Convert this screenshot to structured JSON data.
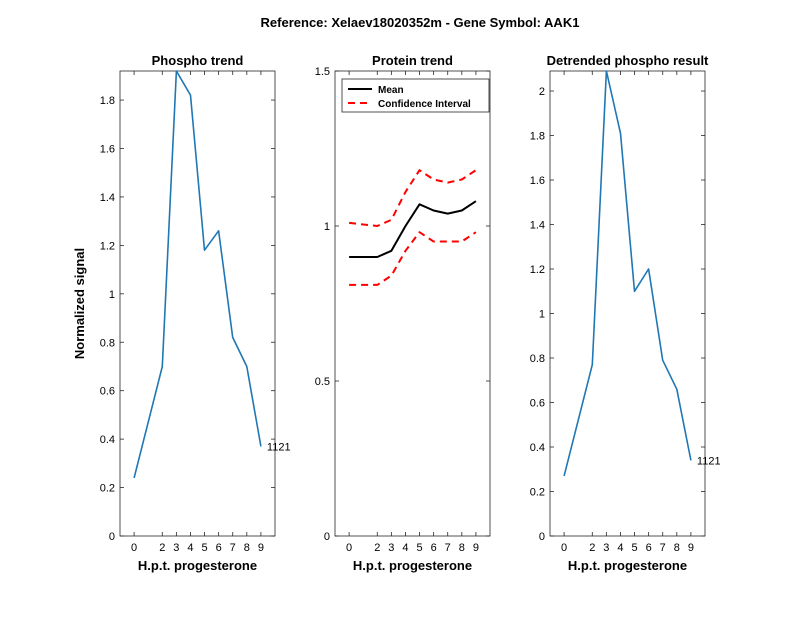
{
  "figure": {
    "title": "Reference:  Xelaev18020352m - Gene Symbol:  AAK1"
  },
  "chart_data": [
    {
      "type": "line",
      "title": "Phospho trend",
      "xlabel": "H.p.t. progesterone",
      "ylabel": "Normalized signal",
      "x": [
        0,
        2,
        3,
        4,
        5,
        6,
        7,
        8,
        9
      ],
      "xticks": [
        "0",
        "2",
        "3",
        "4",
        "5",
        "6",
        "7",
        "8",
        "9"
      ],
      "ylim": [
        0,
        1.92
      ],
      "yticks": [
        "0",
        "0.2",
        "0.4",
        "0.6",
        "0.8",
        "1",
        "1.2",
        "1.4",
        "1.6",
        "1.8"
      ],
      "yticks_values": [
        0,
        0.2,
        0.4,
        0.6,
        0.8,
        1,
        1.2,
        1.4,
        1.6,
        1.8
      ],
      "series": [
        {
          "values": [
            0.24,
            0.7,
            1.92,
            1.82,
            1.18,
            1.26,
            0.82,
            0.7,
            0.37
          ],
          "color": "#1f77b4"
        }
      ],
      "end_label": "1121",
      "grid": false
    },
    {
      "type": "line",
      "title": "Protein trend",
      "xlabel": "H.p.t. progesterone",
      "ylabel": "",
      "x": [
        0,
        2,
        3,
        4,
        5,
        6,
        7,
        8,
        9
      ],
      "xticks": [
        "0",
        "2",
        "3",
        "4",
        "5",
        "6",
        "7",
        "8",
        "9"
      ],
      "ylim": [
        0,
        1.5
      ],
      "yticks": [
        "0",
        "0.5",
        "1",
        "1.5"
      ],
      "yticks_values": [
        0,
        0.5,
        1,
        1.5
      ],
      "series": [
        {
          "name": "Mean",
          "values": [
            0.9,
            0.9,
            0.92,
            1.0,
            1.07,
            1.05,
            1.04,
            1.05,
            1.08
          ],
          "color": "#000000",
          "style": "solid"
        },
        {
          "name": "Confidence Interval",
          "values": [
            1.01,
            1.0,
            1.02,
            1.11,
            1.18,
            1.15,
            1.14,
            1.15,
            1.18
          ],
          "color": "#ff0000",
          "style": "dashed"
        },
        {
          "values": [
            0.81,
            0.81,
            0.84,
            0.92,
            0.98,
            0.95,
            0.95,
            0.95,
            0.98
          ],
          "color": "#ff0000",
          "style": "dashed"
        }
      ],
      "legend": {
        "placement": "top-left",
        "entries": [
          "Mean",
          "Confidence Interval"
        ]
      },
      "grid": false
    },
    {
      "type": "line",
      "title": "Detrended phospho result",
      "xlabel": "H.p.t. progesterone",
      "ylabel": "",
      "x": [
        0,
        2,
        3,
        4,
        5,
        6,
        7,
        8,
        9
      ],
      "xticks": [
        "0",
        "2",
        "3",
        "4",
        "5",
        "6",
        "7",
        "8",
        "9"
      ],
      "ylim": [
        0,
        2.09
      ],
      "yticks": [
        "0",
        "0.2",
        "0.4",
        "0.6",
        "0.8",
        "1",
        "1.2",
        "1.4",
        "1.6",
        "1.8",
        "2"
      ],
      "yticks_values": [
        0,
        0.2,
        0.4,
        0.6,
        0.8,
        1,
        1.2,
        1.4,
        1.6,
        1.8,
        2
      ],
      "series": [
        {
          "values": [
            0.27,
            0.77,
            2.09,
            1.81,
            1.1,
            1.2,
            0.79,
            0.66,
            0.34
          ],
          "color": "#1f77b4"
        }
      ],
      "end_label": "1121",
      "grid": false
    }
  ]
}
